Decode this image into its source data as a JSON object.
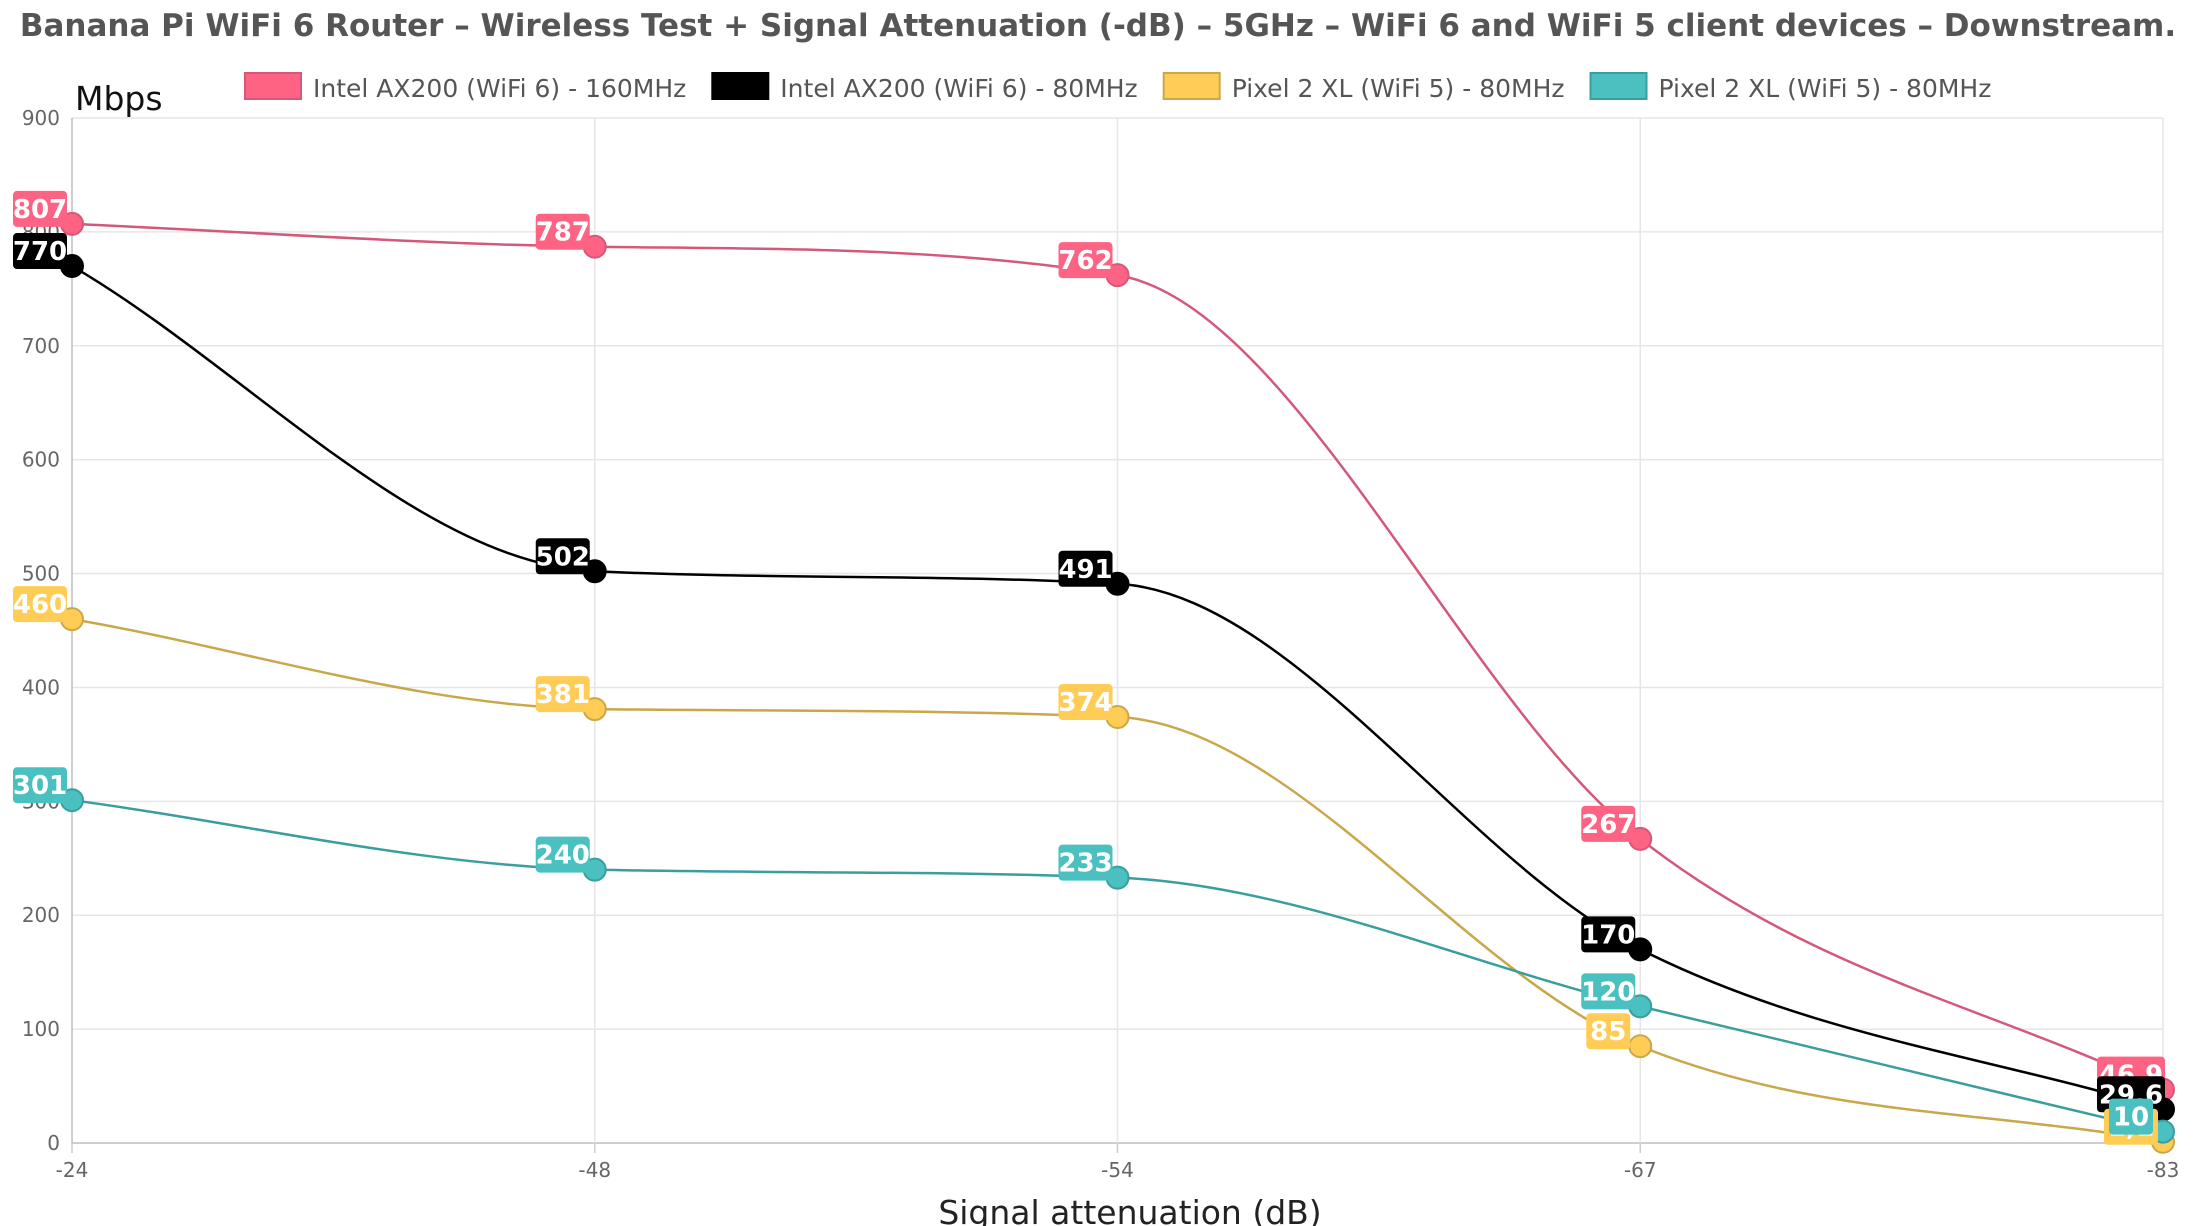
{
  "chart_data": {
    "type": "line",
    "title": "Banana Pi WiFi 6 Router – Wireless Test + Signal Attenuation (-dB) – 5GHz – WiFi 6 and WiFi 5 client devices – Downstream.",
    "xlabel": "Signal attenuation (dB)",
    "ylabel": "Mbps",
    "categories": [
      "-24",
      "-48",
      "-54",
      "-67",
      "-83"
    ],
    "ylim": [
      0,
      900
    ],
    "yticks": [
      "0",
      "100",
      "200",
      "300",
      "400",
      "500",
      "600",
      "700",
      "800",
      "900"
    ],
    "grid": true,
    "legend_position": "top",
    "series": [
      {
        "name": "Intel AX200 (WiFi 6) - 160MHz",
        "values": [
          807,
          787,
          762,
          267,
          46.9
        ],
        "labels": [
          "807",
          "787",
          "762",
          "267",
          "46,9"
        ],
        "color": "#FF6384",
        "stroke": "#D4587A"
      },
      {
        "name": "Intel AX200 (WiFi 6) - 80MHz",
        "values": [
          770,
          502,
          491,
          170,
          29.6
        ],
        "labels": [
          "770",
          "502",
          "491",
          "170",
          "29,6"
        ],
        "color": "#000000",
        "stroke": "#000000"
      },
      {
        "name": "Pixel 2 XL (WiFi 5) - 80MHz",
        "values": [
          460,
          381,
          374,
          85,
          1.1
        ],
        "labels": [
          "460",
          "381",
          "374",
          "85",
          "1,1"
        ],
        "color": "#FFCD56",
        "stroke": "#C9A74A"
      },
      {
        "name": "Pixel 2 XL (WiFi 5) - 80MHz",
        "values": [
          301,
          240,
          233,
          120,
          10
        ],
        "labels": [
          "301",
          "240",
          "233",
          "120",
          "10"
        ],
        "color": "#4BC0C0",
        "stroke": "#3A9E9E"
      }
    ]
  }
}
